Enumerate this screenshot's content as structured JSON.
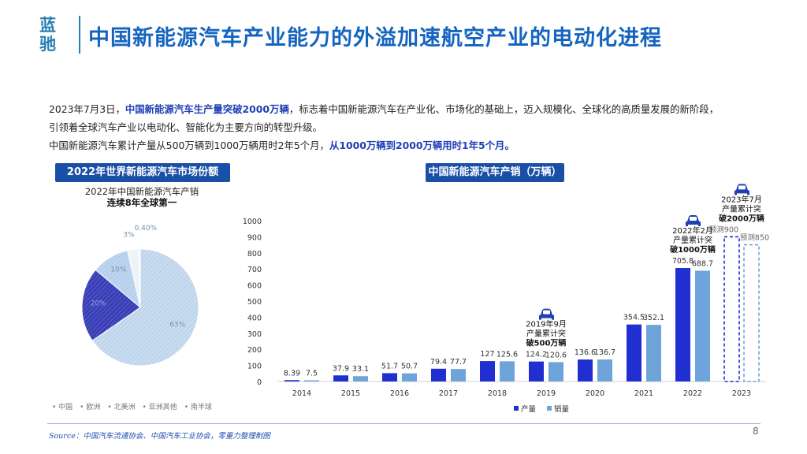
{
  "logo": {
    "line1": "蓝",
    "line2": "驰"
  },
  "title": "中国新能源汽车产业能力的外溢加速航空产业的电动化进程",
  "paragraph": {
    "l1_a": "2023年7月3日，",
    "l1_hl": "中国新能源汽车生产量突破2000万辆",
    "l1_b": "，标志着中国新能源汽车在产业化、市场化的基础上，迈入规模化、全球化的高质量发展的新阶段，",
    "l2": "引领着全球汽车产业以电动化、智能化为主要方向的转型升级。",
    "l3_a": "中国新能源汽车累计产量从500万辆到1000万辆用时2年5个月，",
    "l3_hl": "从1000万辆到2000万辆用时1年5个月。"
  },
  "pie_banner": "2022年世界新能源汽车市场份额",
  "bar_banner": "中国新能源汽车产销（万辆）",
  "pie_caption": {
    "line1": "2022年中国新能源汽车产销",
    "line2": "连续8年全球第一"
  },
  "source": "Source：中国汽车流通协会、中国汽车工业协会，零重力整理制图",
  "page_number": "8",
  "chart_data": [
    {
      "type": "pie",
      "title": "2022年世界新能源汽车市场份额",
      "slices": [
        {
          "name": "中国",
          "value": 63,
          "label": "63%",
          "color": "#c5d9ef"
        },
        {
          "name": "欧洲",
          "value": 20,
          "label": "20%",
          "color": "#3f46b8"
        },
        {
          "name": "北美洲",
          "value": 10,
          "label": "10%",
          "color": "#a9c8e8"
        },
        {
          "name": "亚洲其他",
          "value": 3,
          "label": "3%",
          "color": "#e6eef8"
        },
        {
          "name": "南半球",
          "value": 0.4,
          "label": "0.40%",
          "color": "#ffffff"
        }
      ],
      "legend_position": "bottom"
    },
    {
      "type": "bar",
      "title": "中国新能源汽车产销（万辆）",
      "categories": [
        "2014",
        "2015",
        "2016",
        "2017",
        "2018",
        "2019",
        "2020",
        "2021",
        "2022",
        "2023"
      ],
      "series": [
        {
          "name": "产量",
          "color": "#1f2fd0",
          "values": [
            8.39,
            37.9,
            51.7,
            79.4,
            127,
            124.2,
            136.6,
            354.5,
            705.8,
            900
          ],
          "labels": [
            "8.39",
            "37.9",
            "51.7",
            "79.4",
            "127",
            "124.2",
            "136.6",
            "354.5",
            "705.8",
            "预测900"
          ]
        },
        {
          "name": "销量",
          "color": "#6ea4da",
          "values": [
            7.5,
            33.1,
            50.7,
            77.7,
            125.6,
            120.6,
            136.7,
            352.1,
            688.7,
            850
          ],
          "labels": [
            "7.5",
            "33.1",
            "50.7",
            "77.7",
            "125.6",
            "120.6",
            "136.7",
            "352.1",
            "688.7",
            "预测850"
          ]
        }
      ],
      "forecast_categories": [
        "2023"
      ],
      "ylim": [
        0,
        1000
      ],
      "yticks": [
        0,
        100,
        200,
        300,
        400,
        500,
        600,
        700,
        800,
        900,
        1000
      ],
      "legend_position": "bottom",
      "annotations": [
        {
          "category": "2019",
          "lines": [
            "2019年9月",
            "产量累计突",
            "破500万辆"
          ]
        },
        {
          "category": "2022",
          "lines": [
            "2022年2月",
            "产量累计突",
            "破1000万辆"
          ]
        },
        {
          "category": "2023",
          "lines": [
            "2023年7月",
            "产量累计突",
            "破2000万辆"
          ]
        }
      ]
    }
  ],
  "icons": {
    "car": "car-icon"
  }
}
